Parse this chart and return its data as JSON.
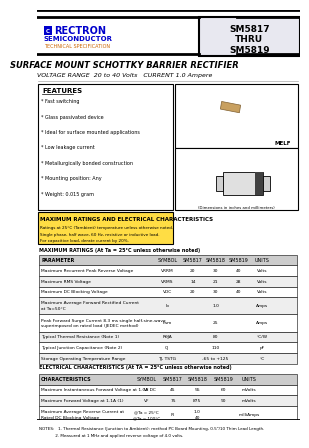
{
  "company": "RECTRON",
  "subtitle1": "SEMICONDUCTOR",
  "subtitle2": "TECHNICAL SPECIFICATION",
  "main_title": "SURFACE MOUNT SCHOTTKY BARRIER RECTIFIER",
  "voltage_current": "VOLTAGE RANGE  20 to 40 Volts   CURRENT 1.0 Ampere",
  "features_title": "FEATURES",
  "features": [
    "* Fast switching",
    "* Glass passivated device",
    "* Ideal for surface mounted applications",
    "* Low leakage current",
    "* Metallurgically bonded construction",
    "* Mounting position: Any",
    "* Weight: 0.015 gram"
  ],
  "package_name": "MELF",
  "max_ratings_title": "MAXIMUM RATINGS AND ELECTRICAL CHARACTERISTICS",
  "max_ratings_note1": "Ratings at 25°C (Tambient) temperature unless otherwise noted.",
  "max_ratings_note2": "Single phase, half wave, 60 Hz, resistive or inductive load.",
  "max_ratings_note3": "For capacitive load, derate current by 20%.",
  "mr_label": "MAXIMUM RATINGS (At Ta = 25°C unless otherwise noted)",
  "max_ratings_header": [
    "PARAMETER",
    "SYMBOL",
    "SM5817",
    "SM5818",
    "SM5819",
    "UNITS"
  ],
  "max_ratings_rows": [
    [
      "Maximum Recurrent Peak Reverse Voltage",
      "VRRM",
      "20",
      "30",
      "40",
      "Volts"
    ],
    [
      "Maximum RMS Voltage",
      "VRMS",
      "14",
      "21",
      "28",
      "Volts"
    ],
    [
      "Maximum DC Blocking Voltage",
      "VDC",
      "20",
      "30",
      "40",
      "Volts"
    ],
    [
      "Maximum Average Forward Rectified Current\nat Ta=50°C",
      "Io",
      "",
      "1.0",
      "",
      "Amps"
    ],
    [
      "Peak Forward Surge Current 8.3 ms single half-sine-wave\nsuperimposed on rated load (JEDEC method)",
      "Ifsm",
      "",
      "25",
      "",
      "Amps"
    ],
    [
      "Typical Thermal Resistance (Note 1)",
      "RθJA",
      "",
      "80",
      "",
      "°C/W"
    ],
    [
      "Typical Junction Capacitance (Note 2)",
      "CJ",
      "",
      "110",
      "",
      "pF"
    ],
    [
      "Storage Operating Temperature Range",
      "TJ, TSTG",
      "",
      "-65 to +125",
      "",
      "°C"
    ]
  ],
  "elec_char_title": "ELECTRICAL CHARACTERISTICS (At TA = 25°C unless otherwise noted)",
  "elec_char_header": [
    "CHARACTERISTICS",
    "SYMBOL",
    "SM5817",
    "SM5818",
    "SM5819",
    "UNITS"
  ],
  "elec_char_rows": [
    [
      "Maximum Instantaneous Forward Voltage at 1.0A DC",
      "VF",
      "45",
      "55",
      "60",
      "mVolts"
    ],
    [
      "Maximum Forward Voltage at 1.1A (1)",
      "VF",
      "75",
      "875",
      "90",
      "mVolts"
    ],
    [
      "Maximum Average Reverse Current at\nRated DC Blocking Voltage",
      "@Ta = 25°C\n@Ta = 100°C",
      "IR",
      "1.0\n40",
      "",
      "milliAmps"
    ]
  ],
  "notes": [
    "NOTES:   1. Thermal Resistance (Junction to Ambient): method PC Board Mounting, 0.5\"/10 Thim Lead Length.",
    "             2. Measured at 1 MHz and applied reverse voltage of 4.0 volts."
  ],
  "blue_color": "#0000cc",
  "orange_color": "#cc6600"
}
